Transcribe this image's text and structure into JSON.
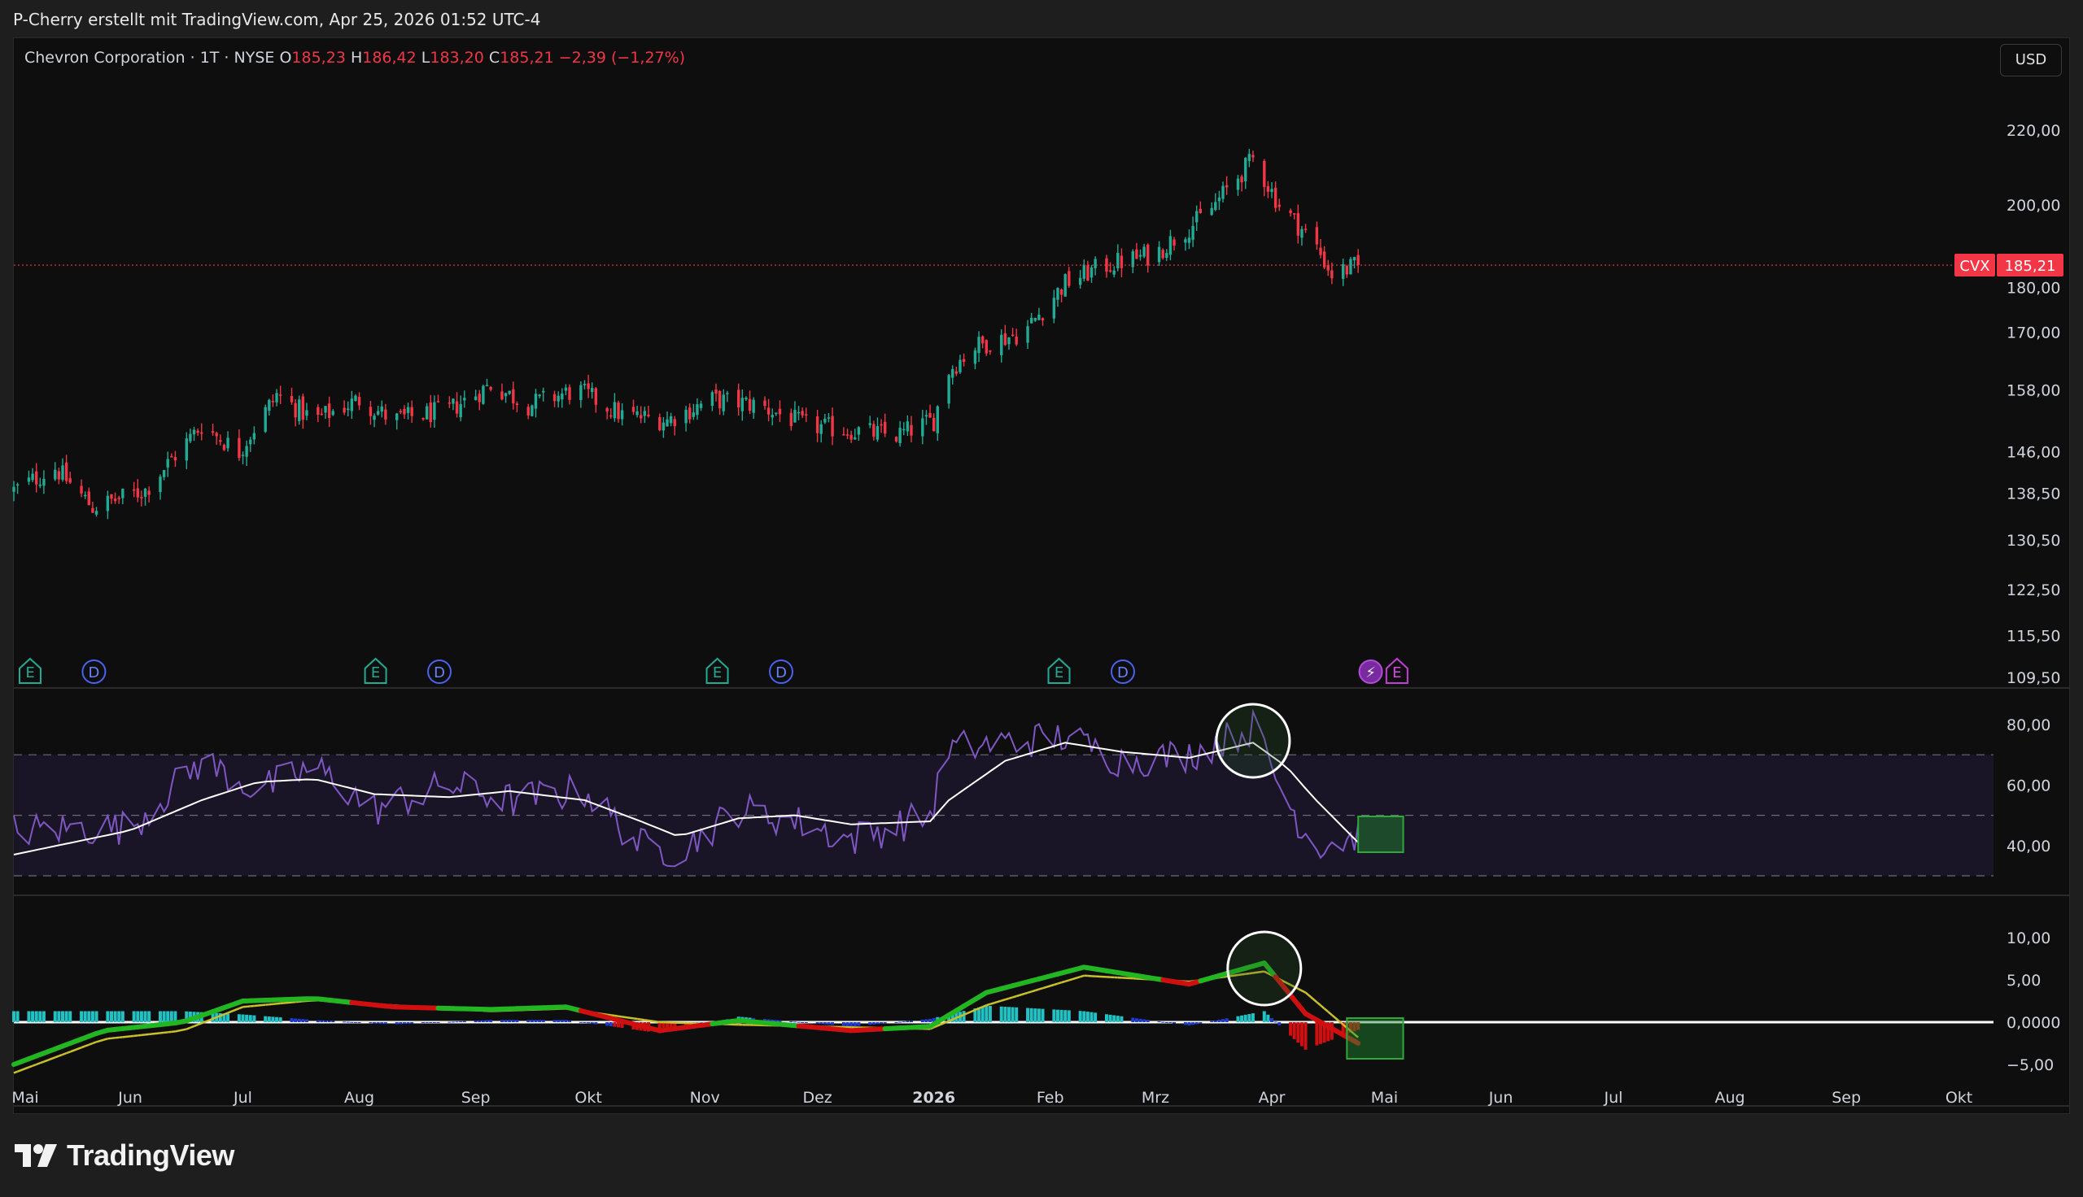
{
  "caption": "P-Cherry erstellt mit TradingView.com, Apr 25, 2026 01:52 UTC-4",
  "legend": {
    "symbol": "Chevron Corporation · 1T · NYSE",
    "open_label": "O",
    "open": "185,23",
    "high_label": "H",
    "high": "186,42",
    "low_label": "L",
    "low": "183,20",
    "close_label": "C",
    "close": "185,21",
    "change": "−2,39 (−1,27%)"
  },
  "currency_button": "USD",
  "price_tag": {
    "ticker": "CVX",
    "price": "185,21"
  },
  "brand": "TradingView",
  "colors": {
    "up": "#22ab94",
    "down": "#f23645",
    "rsi": "#7e57c2",
    "rsi_ma": "#ffffff",
    "macd": "#22b722",
    "signal": "#c9c02a",
    "background": "#0e0e0e"
  },
  "chart_data": {
    "type": "candlestick",
    "title": "Chevron Corporation · 1T · NYSE",
    "x_tick_labels": [
      "Mai",
      "Jun",
      "Jul",
      "Aug",
      "Sep",
      "Okt",
      "Nov",
      "Dez",
      "2026",
      "Feb",
      "Mrz",
      "Apr",
      "Mai",
      "Jun",
      "Jul",
      "Aug",
      "Sep",
      "Okt"
    ],
    "price_axis": {
      "scale": "log",
      "ticks": [
        "220,00",
        "200,00",
        "180,00",
        "170,00",
        "158,00",
        "146,00",
        "138,50",
        "130,50",
        "122,50",
        "115,50",
        "109,50"
      ],
      "last_price": 185.21
    },
    "price_path": [
      {
        "date": "2025-05-01",
        "close": 139
      },
      {
        "date": "2025-05-12",
        "close": 143
      },
      {
        "date": "2025-05-22",
        "close": 136
      },
      {
        "date": "2025-06-05",
        "close": 139
      },
      {
        "date": "2025-06-20",
        "close": 151
      },
      {
        "date": "2025-06-30",
        "close": 146
      },
      {
        "date": "2025-07-10",
        "close": 157
      },
      {
        "date": "2025-07-20",
        "close": 152
      },
      {
        "date": "2025-08-01",
        "close": 156
      },
      {
        "date": "2025-08-10",
        "close": 152
      },
      {
        "date": "2025-08-25",
        "close": 154
      },
      {
        "date": "2025-09-05",
        "close": 159
      },
      {
        "date": "2025-09-15",
        "close": 155
      },
      {
        "date": "2025-09-28",
        "close": 158
      },
      {
        "date": "2025-10-10",
        "close": 153
      },
      {
        "date": "2025-10-22",
        "close": 152
      },
      {
        "date": "2025-11-03",
        "close": 156
      },
      {
        "date": "2025-11-15",
        "close": 155
      },
      {
        "date": "2025-11-28",
        "close": 151
      },
      {
        "date": "2025-12-10",
        "close": 150
      },
      {
        "date": "2025-12-22",
        "close": 149
      },
      {
        "date": "2026-01-01",
        "close": 152
      },
      {
        "date": "2026-01-05",
        "close": 162
      },
      {
        "date": "2026-01-12",
        "close": 167
      },
      {
        "date": "2026-01-25",
        "close": 170
      },
      {
        "date": "2026-02-05",
        "close": 181
      },
      {
        "date": "2026-02-15",
        "close": 185
      },
      {
        "date": "2026-03-01",
        "close": 188
      },
      {
        "date": "2026-03-15",
        "close": 198
      },
      {
        "date": "2026-03-27",
        "close": 212
      },
      {
        "date": "2026-04-03",
        "close": 200
      },
      {
        "date": "2026-04-12",
        "close": 191
      },
      {
        "date": "2026-04-17",
        "close": 183
      },
      {
        "date": "2026-04-24",
        "close": 185.21
      }
    ],
    "event_markers": [
      {
        "date": "2025-05-01",
        "label": "E"
      },
      {
        "date": "2025-05-18",
        "label": "D"
      },
      {
        "date": "2025-08-01",
        "label": "E"
      },
      {
        "date": "2025-08-18",
        "label": "D"
      },
      {
        "date": "2025-10-31",
        "label": "E"
      },
      {
        "date": "2025-11-17",
        "label": "D"
      },
      {
        "date": "2026-01-30",
        "label": "E"
      },
      {
        "date": "2026-02-16",
        "label": "D"
      },
      {
        "date": "2026-04-23",
        "label": "⚡"
      },
      {
        "date": "2026-04-30",
        "label": "E"
      }
    ],
    "rsi": {
      "ticks": [
        "80,00",
        "60,00",
        "40,00"
      ],
      "bands": [
        70,
        50,
        30
      ],
      "path": [
        {
          "date": "2025-05-01",
          "rsi": 45,
          "ma": 37
        },
        {
          "date": "2025-06-01",
          "rsi": 46,
          "ma": 45
        },
        {
          "date": "2025-06-20",
          "rsi": 68,
          "ma": 55
        },
        {
          "date": "2025-07-05",
          "rsi": 58,
          "ma": 61
        },
        {
          "date": "2025-07-20",
          "rsi": 66,
          "ma": 62
        },
        {
          "date": "2025-08-05",
          "rsi": 52,
          "ma": 57
        },
        {
          "date": "2025-08-25",
          "rsi": 60,
          "ma": 56
        },
        {
          "date": "2025-09-10",
          "rsi": 55,
          "ma": 58
        },
        {
          "date": "2025-09-30",
          "rsi": 58,
          "ma": 55
        },
        {
          "date": "2025-10-15",
          "rsi": 40,
          "ma": 48
        },
        {
          "date": "2025-10-25",
          "rsi": 38,
          "ma": 43
        },
        {
          "date": "2025-11-10",
          "rsi": 52,
          "ma": 49
        },
        {
          "date": "2025-11-25",
          "rsi": 48,
          "ma": 50
        },
        {
          "date": "2025-12-10",
          "rsi": 42,
          "ma": 47
        },
        {
          "date": "2025-12-31",
          "rsi": 50,
          "ma": 48
        },
        {
          "date": "2026-01-05",
          "rsi": 72,
          "ma": 55
        },
        {
          "date": "2026-01-20",
          "rsi": 74,
          "ma": 68
        },
        {
          "date": "2026-02-05",
          "rsi": 76,
          "ma": 74
        },
        {
          "date": "2026-02-20",
          "rsi": 68,
          "ma": 71
        },
        {
          "date": "2026-03-10",
          "rsi": 70,
          "ma": 69
        },
        {
          "date": "2026-03-27",
          "rsi": 79,
          "ma": 74
        },
        {
          "date": "2026-04-05",
          "rsi": 55,
          "ma": 66
        },
        {
          "date": "2026-04-12",
          "rsi": 40,
          "ma": 56
        },
        {
          "date": "2026-04-24",
          "rsi": 43,
          "ma": 41
        }
      ]
    },
    "macd": {
      "ticks": [
        "10,00",
        "5,00",
        "0,0000",
        "−5,00"
      ],
      "path": [
        {
          "date": "2025-05-01",
          "macd": -5,
          "signal": -6
        },
        {
          "date": "2025-05-25",
          "macd": -1,
          "signal": -2
        },
        {
          "date": "2025-06-15",
          "macd": 0,
          "signal": -1
        },
        {
          "date": "2025-07-01",
          "macd": 2.5,
          "signal": 1.8
        },
        {
          "date": "2025-07-20",
          "macd": 2.8,
          "signal": 2.6
        },
        {
          "date": "2025-08-10",
          "macd": 1.8,
          "signal": 2
        },
        {
          "date": "2025-09-05",
          "macd": 1.5,
          "signal": 1.3
        },
        {
          "date": "2025-09-25",
          "macd": 1.8,
          "signal": 1.6
        },
        {
          "date": "2025-10-20",
          "macd": -1,
          "signal": 0
        },
        {
          "date": "2025-11-10",
          "macd": 0.2,
          "signal": -0.3
        },
        {
          "date": "2025-12-10",
          "macd": -1,
          "signal": -0.6
        },
        {
          "date": "2025-12-31",
          "macd": -0.5,
          "signal": -0.8
        },
        {
          "date": "2026-01-15",
          "macd": 3.5,
          "signal": 2
        },
        {
          "date": "2026-02-10",
          "macd": 6.5,
          "signal": 5.5
        },
        {
          "date": "2026-03-10",
          "macd": 4.5,
          "signal": 4.8
        },
        {
          "date": "2026-03-30",
          "macd": 7,
          "signal": 6
        },
        {
          "date": "2026-04-10",
          "macd": 1,
          "signal": 3.5
        },
        {
          "date": "2026-04-24",
          "macd": -2.5,
          "signal": -1.8
        }
      ]
    },
    "annotations": [
      {
        "panel": "rsi",
        "shape": "circle",
        "date": "2026-03-27"
      },
      {
        "panel": "rsi",
        "shape": "box",
        "date_range": [
          "2026-04-24",
          "2026-05-06"
        ]
      },
      {
        "panel": "macd",
        "shape": "circle",
        "date": "2026-03-30"
      },
      {
        "panel": "macd",
        "shape": "box",
        "date_range": [
          "2026-04-21",
          "2026-05-06"
        ]
      }
    ]
  }
}
